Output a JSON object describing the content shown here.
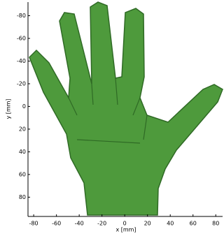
{
  "chart_data": {
    "type": "image",
    "xlabel": "x [mm]",
    "ylabel": "y [mm]",
    "xlim": [
      -85,
      86
    ],
    "xticks": [
      -80,
      -60,
      -40,
      -20,
      0,
      20,
      40,
      60,
      80
    ],
    "ylim": [
      -92,
      97
    ],
    "yticks": [
      -80,
      -60,
      -40,
      -20,
      0,
      20,
      40,
      60,
      80
    ],
    "y_reversed": true,
    "color": "#4e9a3c"
  }
}
